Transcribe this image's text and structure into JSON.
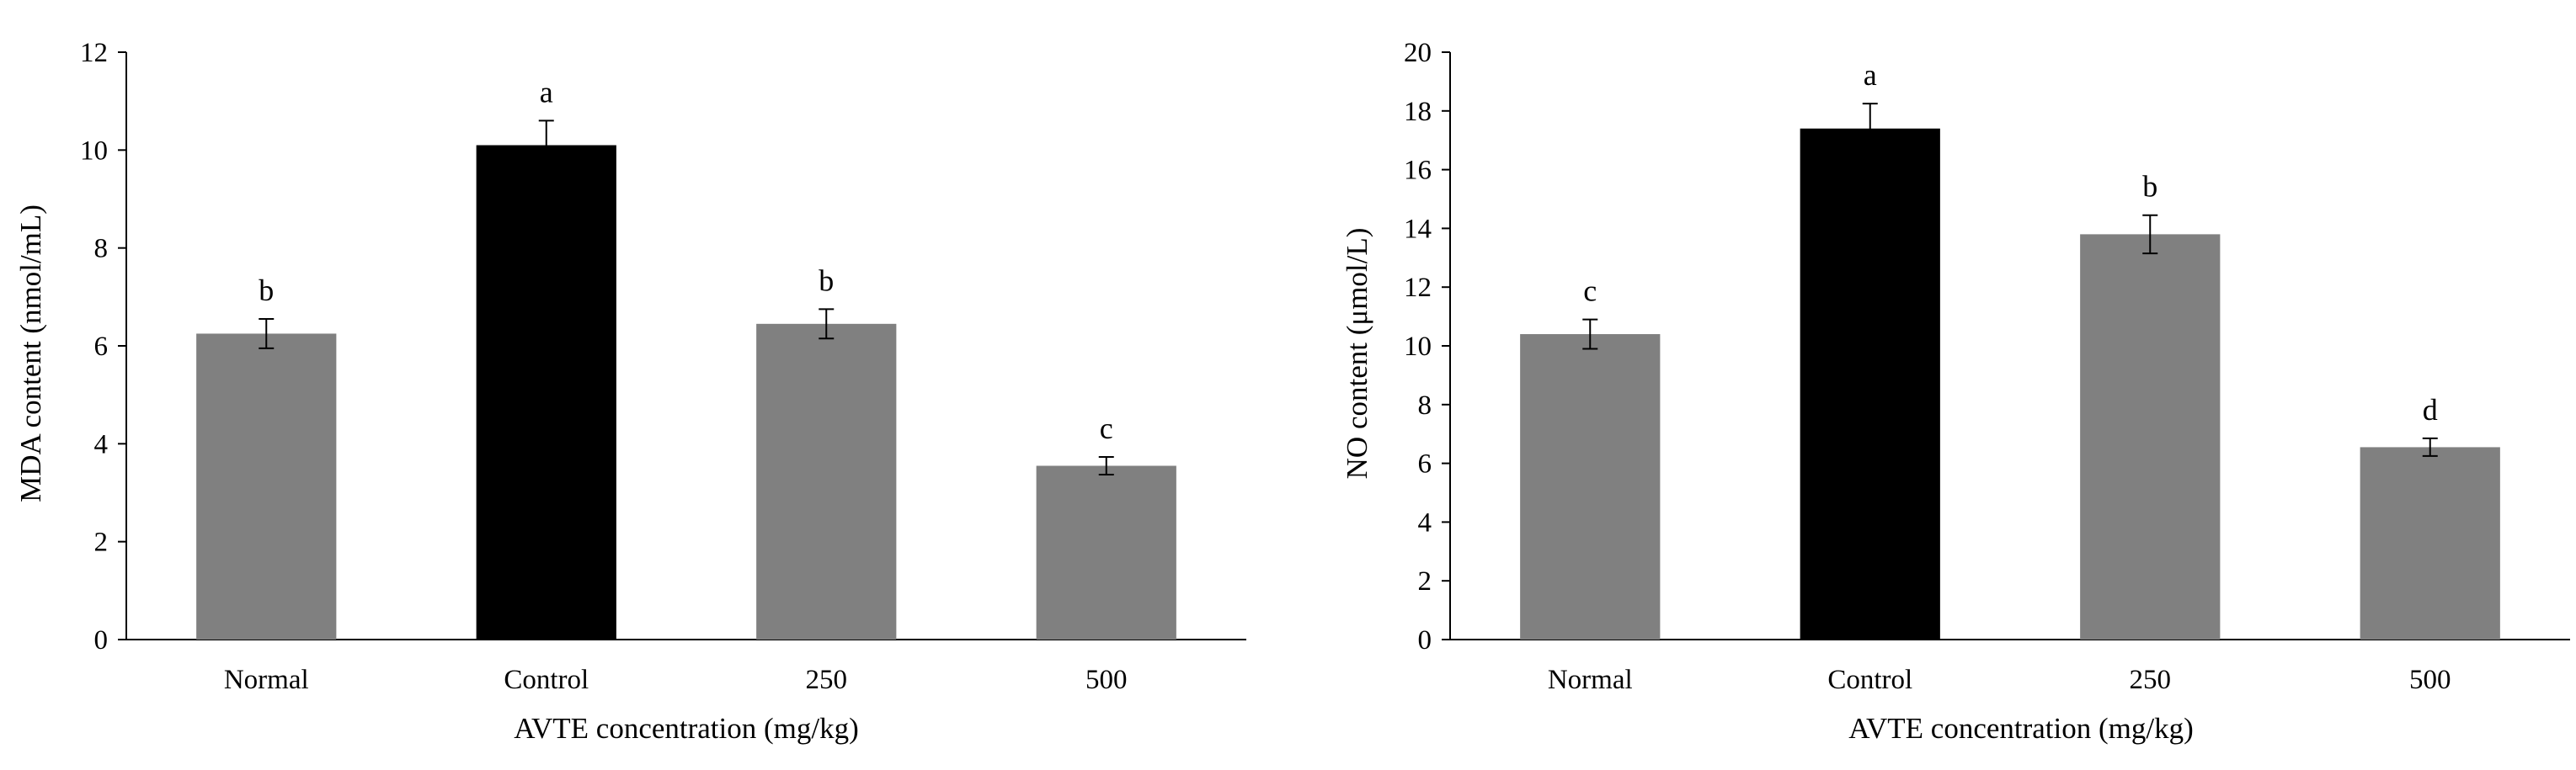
{
  "chart_data": [
    {
      "type": "bar",
      "title": "",
      "xlabel": "AVTE concentration (mg/kg)",
      "ylabel": "MDA content (nmol/mL)",
      "categories": [
        "Normal",
        "Control",
        "250",
        "500"
      ],
      "values": [
        6.25,
        10.1,
        6.45,
        3.55
      ],
      "errors": [
        0.3,
        0.5,
        0.3,
        0.18
      ],
      "significance": [
        "b",
        "a",
        "b",
        "c"
      ],
      "colors": [
        "#808080",
        "#000000",
        "#808080",
        "#808080"
      ],
      "ylim": [
        0,
        12
      ],
      "yticks": [
        0,
        2,
        4,
        6,
        8,
        10,
        12
      ],
      "grid": false
    },
    {
      "type": "bar",
      "title": "",
      "xlabel": "AVTE concentration (mg/kg)",
      "ylabel": "NO content (μmol/L)",
      "categories": [
        "Normal",
        "Control",
        "250",
        "500"
      ],
      "values": [
        10.4,
        17.4,
        13.8,
        6.55
      ],
      "errors": [
        0.5,
        0.85,
        0.65,
        0.3
      ],
      "significance": [
        "c",
        "a",
        "b",
        "d"
      ],
      "colors": [
        "#808080",
        "#000000",
        "#808080",
        "#808080"
      ],
      "ylim": [
        0,
        20
      ],
      "yticks": [
        0,
        2,
        4,
        6,
        8,
        10,
        12,
        14,
        16,
        18,
        20
      ],
      "grid": false
    }
  ]
}
